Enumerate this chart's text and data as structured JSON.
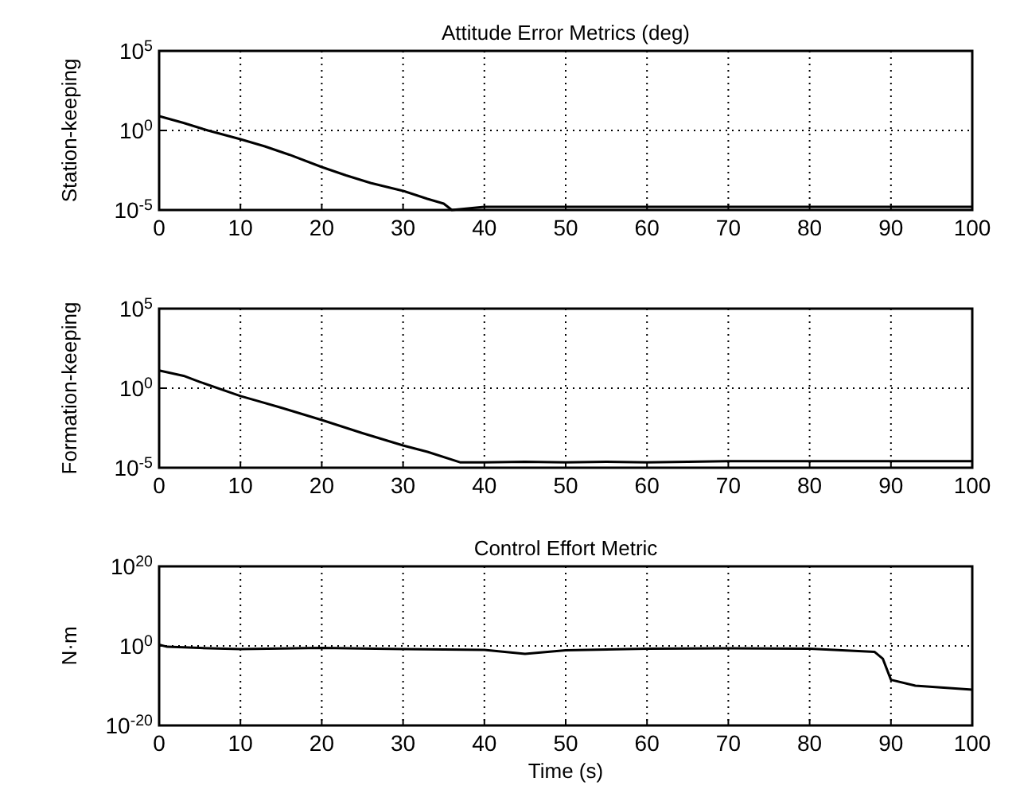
{
  "chart_data": [
    {
      "type": "line",
      "title": "Attitude Error Metrics (deg)",
      "ylabel": "Station-keeping",
      "log": "y",
      "grid": true,
      "line_style": "solid",
      "color": "#000000",
      "x": [
        0,
        3,
        6,
        10,
        13,
        16,
        20,
        23,
        26,
        30,
        33,
        35,
        36,
        40,
        50,
        60,
        70,
        80,
        90,
        100
      ],
      "values": [
        8,
        3,
        1,
        0.28,
        0.1,
        0.03,
        0.005,
        0.0015,
        0.0005,
        0.00016,
        5e-05,
        2.5e-05,
        1e-05,
        1.6e-05,
        1.6e-05,
        1.6e-05,
        1.6e-05,
        1.6e-05,
        1.6e-05,
        1.6e-05
      ],
      "xlim": [
        0,
        100
      ],
      "xticks": [
        0,
        10,
        20,
        30,
        40,
        50,
        60,
        70,
        80,
        90,
        100
      ],
      "ylim": [
        1e-05,
        100000
      ],
      "yticks": [
        {
          "value": 1e-05,
          "label": "10$^{-5}$"
        },
        {
          "value": 1,
          "label": "10$^{0}$"
        },
        {
          "value": 100000,
          "label": "10$^{5}$"
        }
      ]
    },
    {
      "type": "line",
      "ylabel": "Formation-keeping",
      "log": "y",
      "grid": true,
      "line_style": "solid",
      "color": "#000000",
      "x": [
        0,
        3,
        5,
        10,
        15,
        20,
        25,
        30,
        33,
        37,
        40,
        45,
        50,
        55,
        60,
        65,
        70,
        80,
        90,
        100
      ],
      "values": [
        13,
        6,
        2.5,
        0.32,
        0.06,
        0.01,
        0.0015,
        0.00025,
        0.0001,
        2.2e-05,
        2.2e-05,
        2.4e-05,
        2.2e-05,
        2.4e-05,
        2.2e-05,
        2.4e-05,
        2.6e-05,
        2.6e-05,
        2.6e-05,
        2.6e-05
      ],
      "xlim": [
        0,
        100
      ],
      "xticks": [
        0,
        10,
        20,
        30,
        40,
        50,
        60,
        70,
        80,
        90,
        100
      ],
      "ylim": [
        1e-05,
        100000
      ],
      "yticks": [
        {
          "value": 1e-05,
          "label": "10$^{-5}$"
        },
        {
          "value": 1,
          "label": "10$^{0}$"
        },
        {
          "value": 100000,
          "label": "10$^{5}$"
        }
      ]
    },
    {
      "type": "line",
      "title": "Control Effort Metric",
      "xlabel": "Time (s)",
      "ylabel": "N·m",
      "log": "y",
      "grid": true,
      "line_style": "solid",
      "color": "#000000",
      "x": [
        0,
        1,
        5,
        10,
        20,
        30,
        40,
        45,
        50,
        60,
        70,
        80,
        88,
        89,
        90,
        93,
        100
      ],
      "values": [
        2,
        0.6,
        0.3,
        0.16,
        0.3,
        0.16,
        0.1,
        0.01,
        0.08,
        0.2,
        0.25,
        0.2,
        0.03,
        0.0006,
        3e-09,
        1e-10,
        1e-11
      ],
      "xlim": [
        0,
        100
      ],
      "xticks": [
        0,
        10,
        20,
        30,
        40,
        50,
        60,
        70,
        80,
        90,
        100
      ],
      "ylim": [
        1e-20,
        1e+20
      ],
      "yticks": [
        {
          "value": 1e-20,
          "label": "10$^{-20}$"
        },
        {
          "value": 1,
          "label": "10$^{0}$"
        },
        {
          "value": 1e+20,
          "label": "10$^{20}$"
        }
      ]
    }
  ]
}
